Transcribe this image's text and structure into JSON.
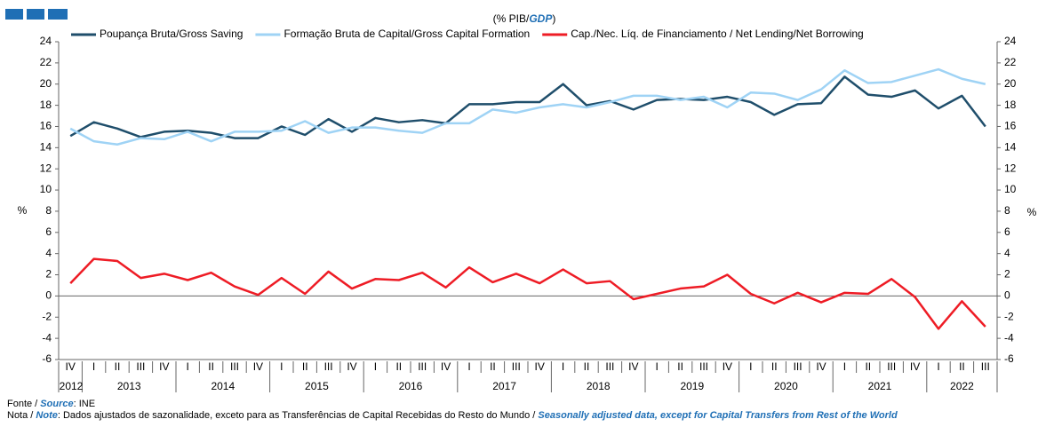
{
  "chart_data": {
    "type": "line",
    "title_parts": [
      "(% PIB/",
      "GDP",
      ")"
    ],
    "ylabel": "%",
    "y2label": "%",
    "categories": [
      "IV",
      "I",
      "II",
      "III",
      "IV",
      "I",
      "II",
      "III",
      "IV",
      "I",
      "II",
      "III",
      "IV",
      "I",
      "II",
      "III",
      "IV",
      "I",
      "II",
      "III",
      "IV",
      "I",
      "II",
      "III",
      "IV",
      "I",
      "II",
      "III",
      "IV",
      "I",
      "II",
      "III",
      "IV",
      "I",
      "II",
      "III",
      "IV",
      "I",
      "II",
      "III"
    ],
    "years": [
      "2012",
      "2013",
      "2014",
      "2015",
      "2016",
      "2017",
      "2018",
      "2019",
      "2020",
      "2021",
      "2022"
    ],
    "series": [
      {
        "name": "Poupança Bruta/Gross Saving",
        "color": "#1f4e6b",
        "values": [
          15.1,
          16.4,
          15.8,
          15.0,
          15.5,
          15.6,
          15.4,
          14.9,
          14.9,
          16.0,
          15.2,
          16.7,
          15.5,
          16.8,
          16.4,
          16.6,
          16.3,
          18.1,
          18.1,
          18.3,
          18.3,
          20.0,
          18.0,
          18.4,
          17.6,
          18.5,
          18.6,
          18.5,
          18.8,
          18.3,
          17.1,
          18.1,
          18.2,
          20.7,
          19.0,
          18.8,
          19.4,
          17.7,
          18.9,
          16.0
        ]
      },
      {
        "name": "Formação Bruta de Capital/Gross Capital Formation",
        "color": "#9fd3f5",
        "values": [
          15.8,
          14.6,
          14.3,
          14.9,
          14.8,
          15.5,
          14.6,
          15.5,
          15.5,
          15.6,
          16.5,
          15.4,
          15.9,
          15.9,
          15.6,
          15.4,
          16.3,
          16.3,
          17.6,
          17.3,
          17.8,
          18.1,
          17.8,
          18.3,
          18.9,
          18.9,
          18.5,
          18.8,
          17.8,
          19.2,
          19.1,
          18.5,
          19.5,
          21.3,
          20.1,
          20.2,
          20.8,
          21.4,
          20.5,
          20.0
        ]
      },
      {
        "name": "Cap./Nec. Líq. de Financiamento / Net Lending/Net Borrowing",
        "color": "#ee1c25",
        "values": [
          1.2,
          3.5,
          3.3,
          1.7,
          2.1,
          1.5,
          2.2,
          0.9,
          0.1,
          1.7,
          0.2,
          2.3,
          0.7,
          1.6,
          1.5,
          2.2,
          0.8,
          2.7,
          1.3,
          2.1,
          1.2,
          2.5,
          1.2,
          1.4,
          -0.3,
          0.2,
          0.7,
          0.9,
          2.0,
          0.2,
          -0.7,
          0.3,
          -0.6,
          0.3,
          0.2,
          1.6,
          -0.1,
          -3.1,
          -0.5,
          -2.9
        ]
      }
    ],
    "ylim": [
      -6,
      24
    ],
    "yticks": [
      -6,
      -4,
      -2,
      0,
      2,
      4,
      6,
      8,
      10,
      12,
      14,
      16,
      18,
      20,
      22,
      24
    ],
    "y2lim": [
      -6,
      24
    ],
    "y2ticks": [
      -6,
      -4,
      -2,
      0,
      2,
      4,
      6,
      8,
      10,
      12,
      14,
      16,
      18,
      20,
      22,
      24
    ],
    "source_label": "Fonte / ",
    "source_label_en": "Source",
    "source_text": ":  INE",
    "note_label": "Nota / ",
    "note_label_en": "Note",
    "note_text": ": Dados ajustados de sazonalidade, exceto para as Transferências de Capital Recebidas do Resto do Mundo / ",
    "note_text_en": "Seasonally adjusted data, except for Capital Transfers from Rest of the World"
  }
}
